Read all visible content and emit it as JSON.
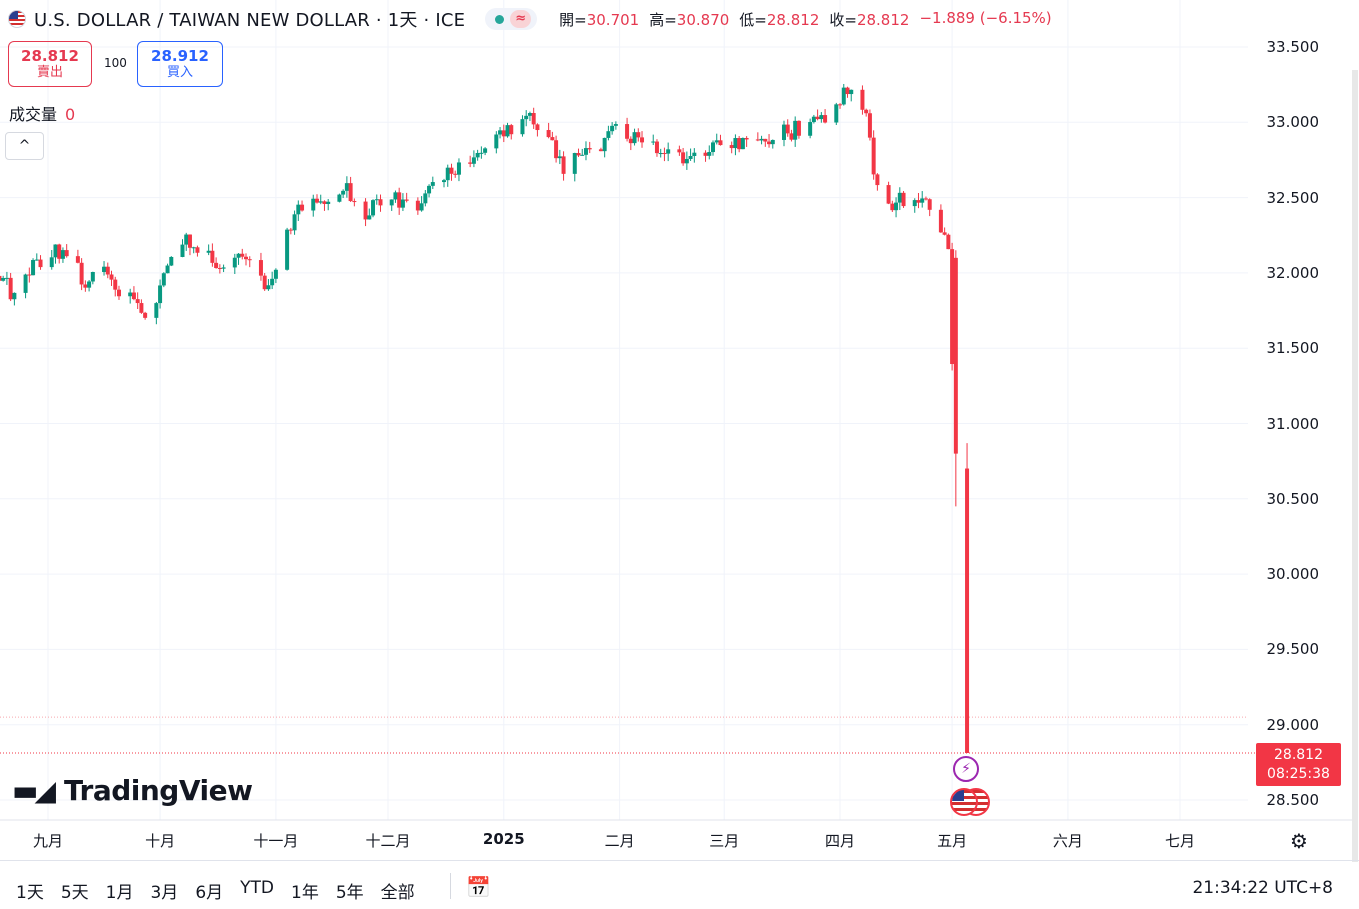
{
  "header": {
    "title": "U.S. DOLLAR / TAIWAN NEW DOLLAR · 1天 · ICE",
    "wave_icon": "≈",
    "ohlc": [
      {
        "k": "開=",
        "v": "30.701"
      },
      {
        "k": "高=",
        "v": "30.870"
      },
      {
        "k": "低=",
        "v": "28.812"
      },
      {
        "k": "收=",
        "v": "28.812"
      }
    ],
    "change": "−1.889 (−6.15%)"
  },
  "trade": {
    "sell_price": "28.812",
    "sell_label": "賣出",
    "spread": "100",
    "buy_price": "28.912",
    "buy_label": "買入"
  },
  "volume": {
    "label": "成交量",
    "value": "0"
  },
  "collapse_icon": "^",
  "price_tag": {
    "price": "28.812",
    "countdown": "08:25:38"
  },
  "logo_text": "TradingView",
  "bottom": {
    "ranges": [
      "1天",
      "5天",
      "1月",
      "3月",
      "6月",
      "YTD",
      "1年",
      "5年",
      "全部"
    ],
    "clock": "21:34:22 UTC+8"
  },
  "colors": {
    "up": "#089981",
    "down": "#f23645"
  },
  "chart_data": {
    "type": "candlestick",
    "title": "",
    "ylim": [
      28.4,
      33.6
    ],
    "y_ticks": [
      "33.500",
      "33.000",
      "32.500",
      "32.000",
      "31.500",
      "31.000",
      "30.500",
      "30.000",
      "29.500",
      "29.000",
      "28.500"
    ],
    "x_ticks": [
      {
        "label": "九月",
        "date": "2024-09-01",
        "bold": false
      },
      {
        "label": "十月",
        "date": "2024-10-01",
        "bold": false
      },
      {
        "label": "十一月",
        "date": "2024-11-01",
        "bold": false
      },
      {
        "label": "十二月",
        "date": "2024-12-01",
        "bold": false
      },
      {
        "label": "2025",
        "date": "2025-01-01",
        "bold": true
      },
      {
        "label": "二月",
        "date": "2025-02-01",
        "bold": false
      },
      {
        "label": "三月",
        "date": "2025-03-01",
        "bold": false
      },
      {
        "label": "四月",
        "date": "2025-04-01",
        "bold": false
      },
      {
        "label": "五月",
        "date": "2025-05-01",
        "bold": false
      },
      {
        "label": "六月",
        "date": "2025-06-01",
        "bold": false
      },
      {
        "label": "七月",
        "date": "2025-07-01",
        "bold": false
      }
    ],
    "last_price": 28.812,
    "prev_close_line": 29.05,
    "anchors": [
      [
        "2024-08-19",
        31.98
      ],
      [
        "2024-08-23",
        31.85
      ],
      [
        "2024-08-28",
        32.05
      ],
      [
        "2024-09-02",
        32.15
      ],
      [
        "2024-09-06",
        32.1
      ],
      [
        "2024-09-11",
        31.95
      ],
      [
        "2024-09-16",
        32.0
      ],
      [
        "2024-09-20",
        31.9
      ],
      [
        "2024-09-25",
        31.8
      ],
      [
        "2024-09-28",
        31.65
      ],
      [
        "2024-10-02",
        31.95
      ],
      [
        "2024-10-05",
        32.25
      ],
      [
        "2024-10-10",
        32.2
      ],
      [
        "2024-10-15",
        32.1
      ],
      [
        "2024-10-20",
        32.05
      ],
      [
        "2024-10-25",
        32.1
      ],
      [
        "2024-10-30",
        31.9
      ],
      [
        "2024-11-05",
        32.3
      ],
      [
        "2024-11-10",
        32.55
      ],
      [
        "2024-11-14",
        32.45
      ],
      [
        "2024-11-20",
        32.55
      ],
      [
        "2024-11-25",
        32.4
      ],
      [
        "2024-12-01",
        32.5
      ],
      [
        "2024-12-08",
        32.45
      ],
      [
        "2024-12-15",
        32.6
      ],
      [
        "2024-12-22",
        32.75
      ],
      [
        "2024-12-29",
        32.85
      ],
      [
        "2025-01-07",
        33.05
      ],
      [
        "2025-01-12",
        32.95
      ],
      [
        "2025-01-17",
        32.7
      ],
      [
        "2025-01-24",
        32.8
      ],
      [
        "2025-01-31",
        32.95
      ],
      [
        "2025-02-06",
        32.9
      ],
      [
        "2025-02-12",
        32.8
      ],
      [
        "2025-02-17",
        32.75
      ],
      [
        "2025-02-22",
        32.75
      ],
      [
        "2025-03-01",
        32.85
      ],
      [
        "2025-03-06",
        32.85
      ],
      [
        "2025-03-12",
        32.9
      ],
      [
        "2025-03-20",
        32.95
      ],
      [
        "2025-03-28",
        33.05
      ],
      [
        "2025-04-03",
        33.2
      ],
      [
        "2025-04-08",
        33.1
      ],
      [
        "2025-04-10",
        32.7
      ],
      [
        "2025-04-14",
        32.45
      ],
      [
        "2025-04-20",
        32.5
      ],
      [
        "2025-04-25",
        32.45
      ],
      [
        "2025-04-28",
        32.3
      ],
      [
        "2025-04-30",
        32.1
      ],
      [
        "2025-05-02",
        30.75
      ],
      [
        "2025-05-05",
        28.812
      ]
    ]
  }
}
